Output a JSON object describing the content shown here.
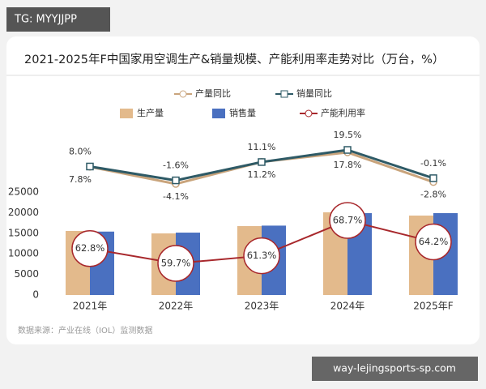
{
  "header_tag": "TG: MYYJJPP",
  "footer_tag": "way-lejingsports-sp.com",
  "source": "数据来源：产业在线（IOL）监测数据",
  "chart_data": {
    "type": "bar",
    "title": "2021-2025年F中国家用空调生产&销量规模、产能利用率走势对比（万台，%）",
    "categories": [
      "2021年",
      "2022年",
      "2023年",
      "2024年",
      "2025年F"
    ],
    "ylim": [
      0,
      25000
    ],
    "yticks": [
      0,
      5000,
      10000,
      15000,
      20000,
      25000
    ],
    "grid": false,
    "series": [
      {
        "name": "产量同比",
        "type": "line",
        "marker": "circle",
        "label_position": "below",
        "color": "#c9a47c",
        "values": [
          7.8,
          -4.1,
          11.2,
          17.8,
          -2.8
        ],
        "value_labels": [
          "7.8%",
          "-4.1%",
          "11.2%",
          "17.8%",
          "-2.8%"
        ]
      },
      {
        "name": "销量同比",
        "type": "line",
        "marker": "square",
        "label_position": "above",
        "color": "#2e5a66",
        "values": [
          8.0,
          -1.6,
          11.1,
          19.5,
          -0.1
        ],
        "value_labels": [
          "8.0%",
          "-1.6%",
          "11.1%",
          "19.5%",
          "-0.1%"
        ]
      },
      {
        "name": "生产量",
        "type": "bar",
        "color": "#e3ba8c",
        "values": [
          15550,
          14960,
          16730,
          20080,
          19290
        ]
      },
      {
        "name": "销售量",
        "type": "bar",
        "color": "#4a70c0",
        "values": [
          15400,
          15150,
          16850,
          19880,
          19880
        ]
      },
      {
        "name": "产能利用率",
        "type": "line",
        "marker": "circle",
        "label_style": "circle",
        "color": "#a8282c",
        "values": [
          62.8,
          59.7,
          61.3,
          68.7,
          64.2
        ],
        "value_labels": [
          "62.8%",
          "59.7%",
          "61.3%",
          "68.7%",
          "64.2%"
        ]
      }
    ]
  }
}
